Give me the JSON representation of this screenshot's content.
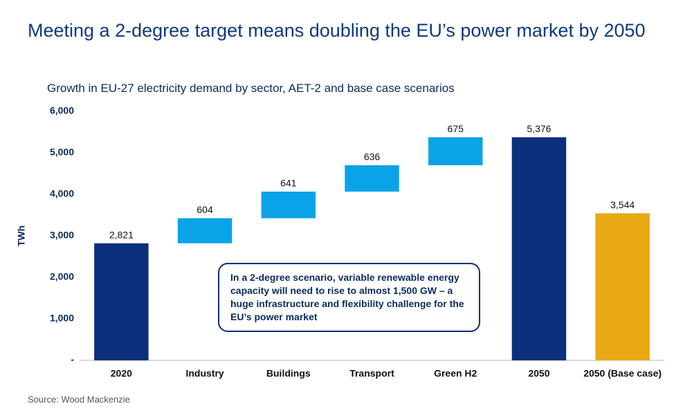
{
  "chart_data": {
    "type": "waterfall",
    "title": "Meeting a 2-degree target means doubling the EU’s power market by 2050",
    "subtitle": "Growth in EU-27 electricity demand by sector, AET-2 and base case scenarios",
    "y_label": "TWh",
    "categories": [
      "2020",
      "Industry",
      "Buildings",
      "Transport",
      "Green H2",
      "2050",
      "2050 (Base case)"
    ],
    "values": [
      2821,
      604,
      641,
      636,
      675,
      5376,
      3544
    ],
    "value_labels": [
      "2,821",
      "604",
      "641",
      "636",
      "675",
      "5,376",
      "3,544"
    ],
    "measures": [
      "absolute",
      "relative",
      "relative",
      "relative",
      "relative",
      "total",
      "absolute"
    ],
    "colors": [
      "#0b2f7a",
      "#0aa3e8",
      "#0aa3e8",
      "#0aa3e8",
      "#0aa3e8",
      "#0b2f7a",
      "#e8a915"
    ],
    "ylim": [
      0,
      6000
    ],
    "yticks": [
      {
        "value": 0,
        "label": "-"
      },
      {
        "value": 1000,
        "label": "1,000"
      },
      {
        "value": 2000,
        "label": "2,000"
      },
      {
        "value": 3000,
        "label": "3,000"
      },
      {
        "value": 4000,
        "label": "4,000"
      },
      {
        "value": 5000,
        "label": "5,000"
      },
      {
        "value": 6000,
        "label": "6,000"
      }
    ],
    "grid": false,
    "annotation": "In a 2-degree scenario, variable renewable energy capacity will need to rise to almost 1,500 GW – a huge infrastructure and flexibility challenge for the EU’s power market",
    "source": "Source: Wood Mackenzie"
  }
}
